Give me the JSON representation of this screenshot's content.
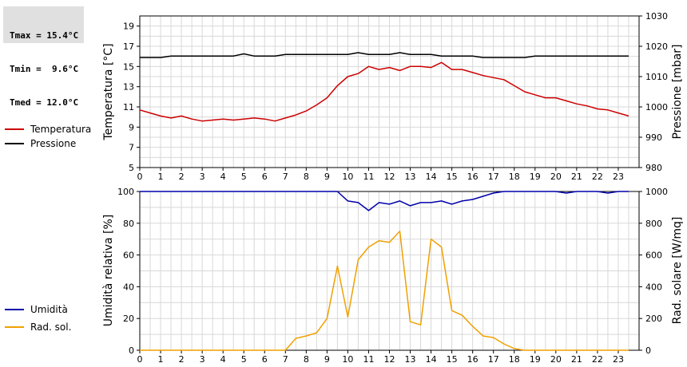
{
  "stats": {
    "tmax": "Tmax = 15.4°C",
    "tmin": "Tmin =  9.6°C",
    "tmed": "Tmed = 12.0°C"
  },
  "colors": {
    "temperature": "#cc0000",
    "pressure": "#000000",
    "humidity": "#0000aa",
    "solar": "#f0a000",
    "grid": "#d8d8d8"
  },
  "chart_data": [
    {
      "type": "line",
      "x": [
        0,
        0.5,
        1,
        1.5,
        2,
        2.5,
        3,
        3.5,
        4,
        4.5,
        5,
        5.5,
        6,
        6.5,
        7,
        7.5,
        8,
        8.5,
        9,
        9.5,
        10,
        10.5,
        11,
        11.5,
        12,
        12.5,
        13,
        13.5,
        14,
        14.5,
        15,
        15.5,
        16,
        16.5,
        17,
        17.5,
        18,
        18.5,
        19,
        19.5,
        20,
        20.5,
        21,
        21.5,
        22,
        22.5,
        23,
        23.5
      ],
      "xticks": [
        "0",
        "1",
        "2",
        "3",
        "4",
        "5",
        "6",
        "7",
        "8",
        "9",
        "10",
        "11",
        "12",
        "13",
        "14",
        "15",
        "16",
        "17",
        "18",
        "19",
        "20",
        "21",
        "22",
        "23"
      ],
      "xlim": [
        0,
        24
      ],
      "ylabel": "Temperatura [°C]",
      "ylim": [
        5,
        20
      ],
      "yticks": [
        "5",
        "7",
        "9",
        "11",
        "13",
        "15",
        "17",
        "19"
      ],
      "y2label": "Pressione [mbar]",
      "y2lim": [
        980,
        1030
      ],
      "y2ticks": [
        "980",
        "990",
        "1000",
        "1010",
        "1020",
        "1030"
      ],
      "series": [
        {
          "name": "Temperatura",
          "axis": "left",
          "values": [
            10.7,
            10.4,
            10.1,
            9.9,
            10.1,
            9.8,
            9.6,
            9.7,
            9.8,
            9.7,
            9.8,
            9.9,
            9.8,
            9.6,
            9.9,
            10.2,
            10.6,
            11.2,
            11.9,
            13.1,
            14.0,
            14.3,
            15.0,
            14.7,
            14.9,
            14.6,
            15.0,
            15.0,
            14.9,
            15.4,
            14.7,
            14.7,
            14.4,
            14.1,
            13.9,
            13.7,
            13.1,
            12.5,
            12.2,
            11.9,
            11.9,
            11.6,
            11.3,
            11.1,
            10.8,
            10.7,
            10.4,
            10.1
          ]
        },
        {
          "name": "Pressione",
          "axis": "right",
          "values": [
            1016.3,
            1016.3,
            1016.3,
            1016.8,
            1016.8,
            1016.8,
            1016.8,
            1016.8,
            1016.8,
            1016.8,
            1017.5,
            1016.8,
            1016.8,
            1016.8,
            1017.3,
            1017.3,
            1017.3,
            1017.3,
            1017.3,
            1017.3,
            1017.3,
            1017.9,
            1017.3,
            1017.3,
            1017.3,
            1017.9,
            1017.3,
            1017.3,
            1017.3,
            1016.8,
            1016.8,
            1016.8,
            1016.8,
            1016.3,
            1016.3,
            1016.3,
            1016.3,
            1016.3,
            1016.8,
            1016.8,
            1016.8,
            1016.8,
            1016.8,
            1016.8,
            1016.8,
            1016.8,
            1016.8,
            1016.8
          ]
        }
      ]
    },
    {
      "type": "line",
      "x": [
        0,
        0.5,
        1,
        1.5,
        2,
        2.5,
        3,
        3.5,
        4,
        4.5,
        5,
        5.5,
        6,
        6.5,
        7,
        7.5,
        8,
        8.5,
        9,
        9.5,
        10,
        10.5,
        11,
        11.5,
        12,
        12.5,
        13,
        13.5,
        14,
        14.5,
        15,
        15.5,
        16,
        16.5,
        17,
        17.5,
        18,
        18.5,
        19,
        19.5,
        20,
        20.5,
        21,
        21.5,
        22,
        22.5,
        23,
        23.5
      ],
      "xticks": [
        "0",
        "1",
        "2",
        "3",
        "4",
        "5",
        "6",
        "7",
        "8",
        "9",
        "10",
        "11",
        "12",
        "13",
        "14",
        "15",
        "16",
        "17",
        "18",
        "19",
        "20",
        "21",
        "22",
        "23"
      ],
      "xlim": [
        0,
        24
      ],
      "ylabel": "Umidità relativa [%]",
      "ylim": [
        0,
        100
      ],
      "yticks": [
        "0",
        "20",
        "40",
        "60",
        "80",
        "100"
      ],
      "y2label": "Rad. solare [W/mq]",
      "y2lim": [
        0,
        1000
      ],
      "y2ticks": [
        "0",
        "200",
        "400",
        "600",
        "800",
        "1000"
      ],
      "series": [
        {
          "name": "Umidità",
          "axis": "left",
          "values": [
            100,
            100,
            100,
            100,
            100,
            100,
            100,
            100,
            100,
            100,
            100,
            100,
            100,
            100,
            100,
            100,
            100,
            100,
            100,
            100,
            94,
            93,
            88,
            93,
            92,
            94,
            91,
            93,
            93,
            94,
            92,
            94,
            95,
            97,
            99,
            100,
            100,
            100,
            100,
            100,
            100,
            99,
            100,
            100,
            100,
            99,
            100,
            100
          ]
        },
        {
          "name": "Rad. sol.",
          "axis": "right",
          "values": [
            0,
            0,
            0,
            0,
            0,
            0,
            0,
            0,
            0,
            0,
            0,
            0,
            0,
            0,
            0,
            75,
            90,
            110,
            200,
            530,
            210,
            570,
            650,
            690,
            680,
            750,
            180,
            160,
            700,
            650,
            250,
            220,
            150,
            90,
            80,
            40,
            10,
            0,
            0,
            0,
            0,
            0,
            0,
            0,
            0,
            0,
            0,
            0
          ]
        }
      ]
    }
  ]
}
